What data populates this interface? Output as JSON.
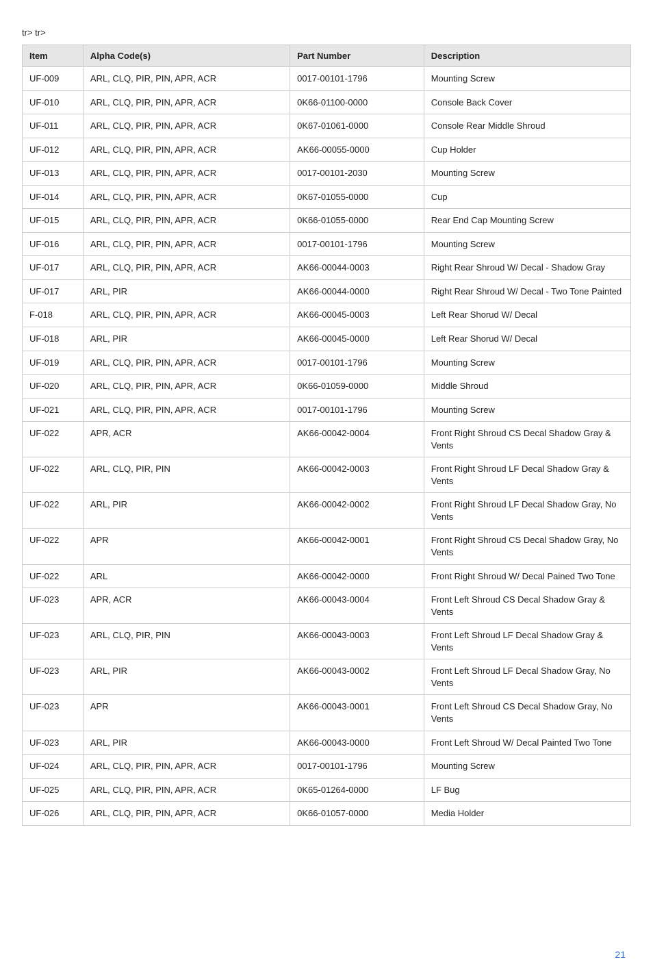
{
  "prefix_text": "tr> tr>",
  "page_number": "21",
  "page_number_color": "#2a6fd6",
  "table": {
    "header_bg": "#e6e6e6",
    "border_color": "#cccccc",
    "columns": [
      "Item",
      "Alpha Code(s)",
      "Part Number",
      "Description"
    ],
    "rows": [
      [
        "UF-009",
        "ARL, CLQ, PIR, PIN, APR, ACR",
        "0017-00101-1796",
        "Mounting Screw"
      ],
      [
        "UF-010",
        "ARL, CLQ, PIR, PIN, APR, ACR",
        "0K66-01100-0000",
        "Console Back Cover"
      ],
      [
        "UF-011",
        "ARL, CLQ, PIR, PIN, APR, ACR",
        "0K67-01061-0000",
        "Console Rear Middle Shroud"
      ],
      [
        "UF-012",
        "ARL, CLQ, PIR, PIN, APR, ACR",
        "AK66-00055-0000",
        "Cup Holder"
      ],
      [
        "UF-013",
        "ARL, CLQ, PIR, PIN, APR, ACR",
        "0017-00101-2030",
        "Mounting Screw"
      ],
      [
        "UF-014",
        "ARL, CLQ, PIR, PIN, APR, ACR",
        "0K67-01055-0000",
        "Cup"
      ],
      [
        "UF-015",
        "ARL, CLQ, PIR, PIN, APR, ACR",
        "0K66-01055-0000",
        "Rear End Cap Mounting Screw"
      ],
      [
        "UF-016",
        "ARL, CLQ, PIR, PIN, APR, ACR",
        "0017-00101-1796",
        "Mounting Screw"
      ],
      [
        "UF-017",
        "ARL, CLQ, PIR, PIN, APR, ACR",
        "AK66-00044-0003",
        "Right Rear Shroud W/ Decal - Shadow Gray"
      ],
      [
        "UF-017",
        "ARL, PIR",
        "AK66-00044-0000",
        "Right Rear Shroud W/ Decal - Two Tone Painted"
      ],
      [
        "F-018",
        "ARL, CLQ, PIR, PIN, APR, ACR",
        "AK66-00045-0003",
        "Left Rear Shorud W/ Decal"
      ],
      [
        "UF-018",
        "ARL, PIR",
        "AK66-00045-0000",
        "Left Rear Shorud W/ Decal"
      ],
      [
        "UF-019",
        "ARL, CLQ, PIR, PIN, APR, ACR",
        "0017-00101-1796",
        "Mounting Screw"
      ],
      [
        "UF-020",
        "ARL, CLQ, PIR, PIN, APR, ACR",
        "0K66-01059-0000",
        "Middle Shroud"
      ],
      [
        "UF-021",
        "ARL, CLQ, PIR, PIN, APR, ACR",
        "0017-00101-1796",
        "Mounting Screw"
      ],
      [
        "UF-022",
        "APR, ACR",
        "AK66-00042-0004",
        "Front Right Shroud CS Decal Shadow Gray & Vents"
      ],
      [
        "UF-022",
        "ARL, CLQ, PIR, PIN",
        "AK66-00042-0003",
        "Front Right Shroud LF Decal Shadow Gray & Vents"
      ],
      [
        "UF-022",
        "ARL, PIR",
        "AK66-00042-0002",
        "Front Right Shroud LF Decal Shadow Gray, No Vents"
      ],
      [
        "UF-022",
        "APR",
        "AK66-00042-0001",
        "Front Right Shroud CS Decal Shadow Gray, No Vents"
      ],
      [
        "UF-022",
        "ARL",
        "AK66-00042-0000",
        "Front Right Shroud W/ Decal Pained Two Tone"
      ],
      [
        "UF-023",
        "APR, ACR",
        "AK66-00043-0004",
        "Front Left Shroud CS Decal Shadow Gray & Vents"
      ],
      [
        "UF-023",
        "ARL, CLQ, PIR, PIN",
        "AK66-00043-0003",
        "Front Left Shroud LF Decal Shadow Gray & Vents"
      ],
      [
        "UF-023",
        "ARL, PIR",
        "AK66-00043-0002",
        "Front Left Shroud LF Decal Shadow Gray, No Vents"
      ],
      [
        "UF-023",
        "APR",
        "AK66-00043-0001",
        "Front Left Shroud CS Decal Shadow Gray, No Vents"
      ],
      [
        "UF-023",
        "ARL, PIR",
        "AK66-00043-0000",
        "Front Left Shroud W/ Decal Painted Two Tone"
      ],
      [
        "UF-024",
        "ARL, CLQ, PIR, PIN, APR, ACR",
        "0017-00101-1796",
        "Mounting Screw"
      ],
      [
        "UF-025",
        "ARL, CLQ, PIR, PIN, APR, ACR",
        "0K65-01264-0000",
        "LF Bug"
      ],
      [
        "UF-026",
        "ARL, CLQ, PIR, PIN, APR, ACR",
        "0K66-01057-0000",
        "Media Holder"
      ]
    ]
  }
}
